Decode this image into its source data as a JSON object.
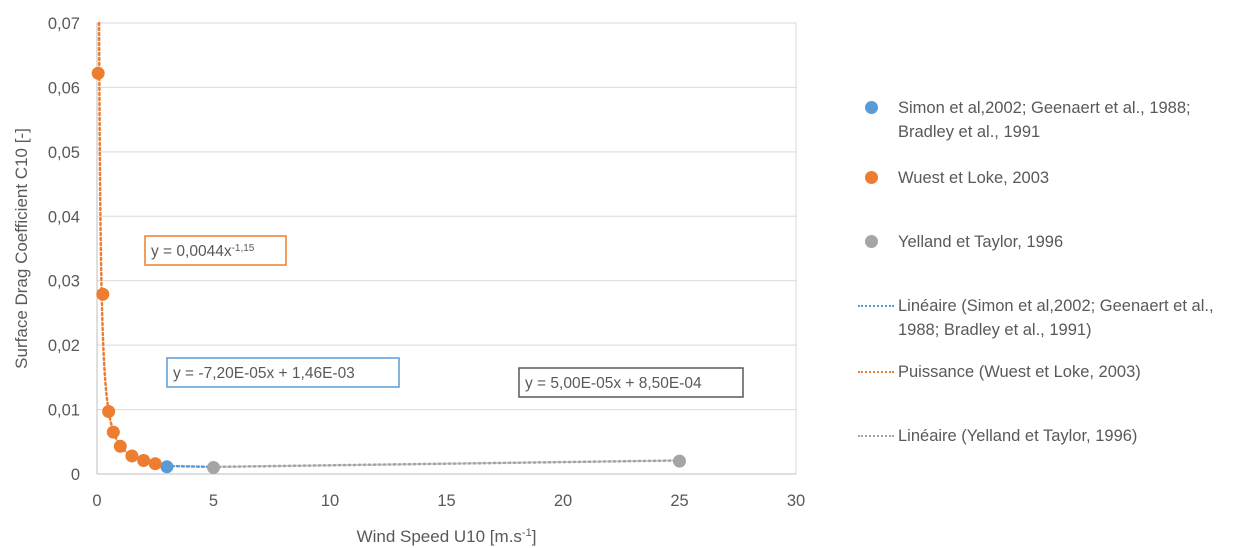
{
  "colors": {
    "blue": "#5b9bd5",
    "orange": "#ed7d31",
    "gray": "#a5a5a5",
    "axis": "#bfbfbf",
    "grid": "#d9d9d9",
    "text": "#595959",
    "eqGray": "#595959"
  },
  "chart_data": {
    "type": "scatter",
    "xlabel": "Wind Speed U10 [m.s",
    "xlabel_sup": "-1",
    "xlabel_end": "]",
    "ylabel": "Surface Drag Coefficient C10 [-]",
    "xlim": [
      0,
      30
    ],
    "ylim": [
      0,
      0.07
    ],
    "x_ticks": [
      0,
      5,
      10,
      15,
      20,
      25,
      30
    ],
    "x_tick_labels": [
      "0",
      "5",
      "10",
      "15",
      "20",
      "25",
      "30"
    ],
    "y_ticks": [
      0,
      0.01,
      0.02,
      0.03,
      0.04,
      0.05,
      0.06,
      0.07
    ],
    "y_tick_labels": [
      "0",
      "0,01",
      "0,02",
      "0,03",
      "0,04",
      "0,05",
      "0,06",
      "0,07"
    ],
    "grid": "horizontal",
    "legend_position": "right",
    "series": [
      {
        "name": "Simon et al,2002; Geenaert et al., 1988; Bradley et al., 1991",
        "color": "#5b9bd5",
        "points": [
          [
            3.0,
            0.00112
          ]
        ]
      },
      {
        "name": "Wuest et Loke, 2003",
        "color": "#ed7d31",
        "points": [
          [
            0.05,
            0.0622
          ],
          [
            0.25,
            0.0279
          ],
          [
            0.5,
            0.0097
          ],
          [
            0.7,
            0.0065
          ],
          [
            1.0,
            0.0043
          ],
          [
            1.5,
            0.0028
          ],
          [
            2.0,
            0.0021
          ],
          [
            2.5,
            0.0016
          ]
        ]
      },
      {
        "name": "Yelland et Taylor, 1996",
        "color": "#a5a5a5",
        "points": [
          [
            5.0,
            0.001
          ],
          [
            25.0,
            0.002
          ]
        ]
      }
    ],
    "trendlines": [
      {
        "name": "Linéaire (Simon et al,2002; Geenaert et al., 1988; Bradley et al., 1991)",
        "color": "#5b9bd5",
        "kind": "linear",
        "slope": -7.2e-05,
        "intercept": 0.00146,
        "x_range": [
          3.0,
          5.0
        ],
        "equation": "y = -7,20E-05x + 1,46E-03"
      },
      {
        "name": "Puissance (Wuest et Loke, 2003)",
        "color": "#ed7d31",
        "kind": "power",
        "coef": 0.0044,
        "exponent": -1.15,
        "x_range": [
          0.09,
          2.5
        ],
        "equation": "y = 0,0044x",
        "equation_sup": "-1,15"
      },
      {
        "name": "Linéaire (Yelland et Taylor, 1996)",
        "color": "#a5a5a5",
        "kind": "linear",
        "slope": 5e-05,
        "intercept": 0.00085,
        "x_range": [
          5.0,
          25.0
        ],
        "equation": "y = 5,00E-05x + 8,50E-04"
      }
    ]
  }
}
